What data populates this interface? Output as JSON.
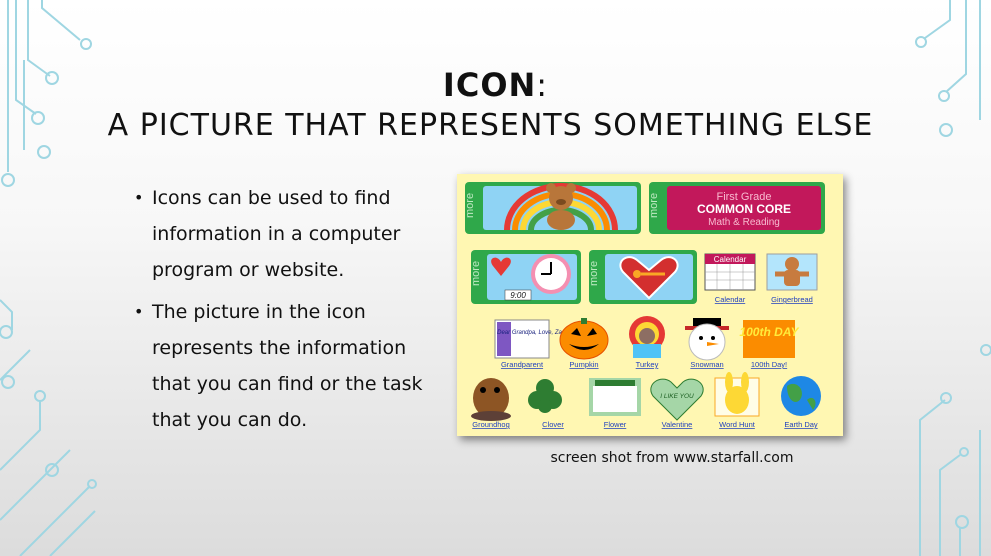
{
  "slide": {
    "title_main": "ICON",
    "title_colon": ":",
    "subtitle": "A PICTURE THAT REPRESENTS SOMETHING ELSE",
    "bullets": [
      "Icons can be used to find information in a computer program or website.",
      "The picture in the icon represents the information that you can find or the task that you can do."
    ],
    "caption": "screen shot from www.starfall.com"
  },
  "screenshot": {
    "tabs_label": "more",
    "banner_lines": [
      "First Grade",
      "COMMON CORE",
      "Math & Reading"
    ],
    "clock_time": "9:00",
    "calendar_header": "Calendar",
    "grandparent_card": "Dear Grandpa, Love, Zac",
    "day100_text": "100th DAY",
    "valentine_text": "I LIKE YOU",
    "icons": {
      "calendar": "Calendar",
      "gingerbread": "Gingerbread",
      "grandparent": "Grandparent",
      "pumpkin": "Pumpkin",
      "turkey": "Turkey",
      "snowman": "Snowman",
      "day100": "100th Day!",
      "groundhog": "Groundhog",
      "clover": "Clover",
      "flower": "Flower",
      "valentine": "Valentine",
      "wordhunt": "Word Hunt",
      "earthday": "Earth Day"
    }
  },
  "colors": {
    "circuit": "#9fd6e2",
    "screenshot_bg": "#fff7b2",
    "label_link": "#1f3fbf",
    "tab_green": "#2fa84a"
  }
}
